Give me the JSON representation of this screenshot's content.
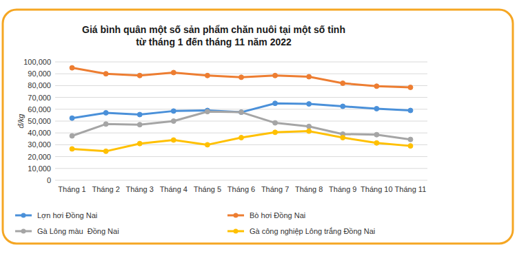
{
  "chart_data": {
    "type": "line",
    "title": "Giá bình quân một số sản phẩm chăn nuôi tại một số tỉnh",
    "subtitle": "từ tháng 1 đến tháng 11 năm 2022",
    "y_label": "đ/kg",
    "categories": [
      "Tháng 1",
      "Tháng 2",
      "Tháng 3",
      "Tháng 4",
      "Tháng 5",
      "Tháng 6",
      "Tháng 7",
      "Tháng 8",
      "Tháng 9",
      "Tháng 10",
      "Tháng 11"
    ],
    "series": [
      {
        "name": "Lợn hơi Đồng Nai",
        "color": "#4a90d9",
        "values": [
          52500,
          57000,
          55500,
          58500,
          59000,
          57500,
          65000,
          64500,
          62500,
          60500,
          59000
        ]
      },
      {
        "name": "Bò hơi Đồng Nai",
        "color": "#ed7d31",
        "values": [
          95000,
          90000,
          88500,
          91000,
          88500,
          87000,
          88500,
          87500,
          82000,
          79500,
          78500
        ]
      },
      {
        "name": "Gà Lông màu  Đồng Nai",
        "color": "#a5a5a5",
        "values": [
          37500,
          47500,
          47000,
          50000,
          58000,
          57500,
          48500,
          45500,
          39000,
          38500,
          34500
        ]
      },
      {
        "name": "Gà công nghiệp Lông trắng Đồng Nai",
        "color": "#ffc000",
        "values": [
          26500,
          24500,
          31000,
          34000,
          30000,
          36000,
          40500,
          41500,
          36000,
          31500,
          29000
        ]
      }
    ],
    "ylim": [
      0,
      100000
    ],
    "yticks": [
      0,
      {
        "value": 10000,
        "label": "10,000"
      },
      {
        "value": 20000,
        "label": "20,000"
      },
      {
        "value": 30000,
        "label": "30,000"
      },
      {
        "value": 40000,
        "label": "40,000"
      },
      {
        "value": 50000,
        "label": "50,000"
      },
      {
        "value": 60000,
        "label": "60,000"
      },
      {
        "value": 70000,
        "label": "70,000"
      },
      {
        "value": 80000,
        "label": "80,000"
      },
      {
        "value": 90000,
        "label": "90,000"
      },
      {
        "value": 100000,
        "label": "100,000"
      }
    ],
    "grid": true,
    "legend": "bottom",
    "marker": "circle"
  }
}
